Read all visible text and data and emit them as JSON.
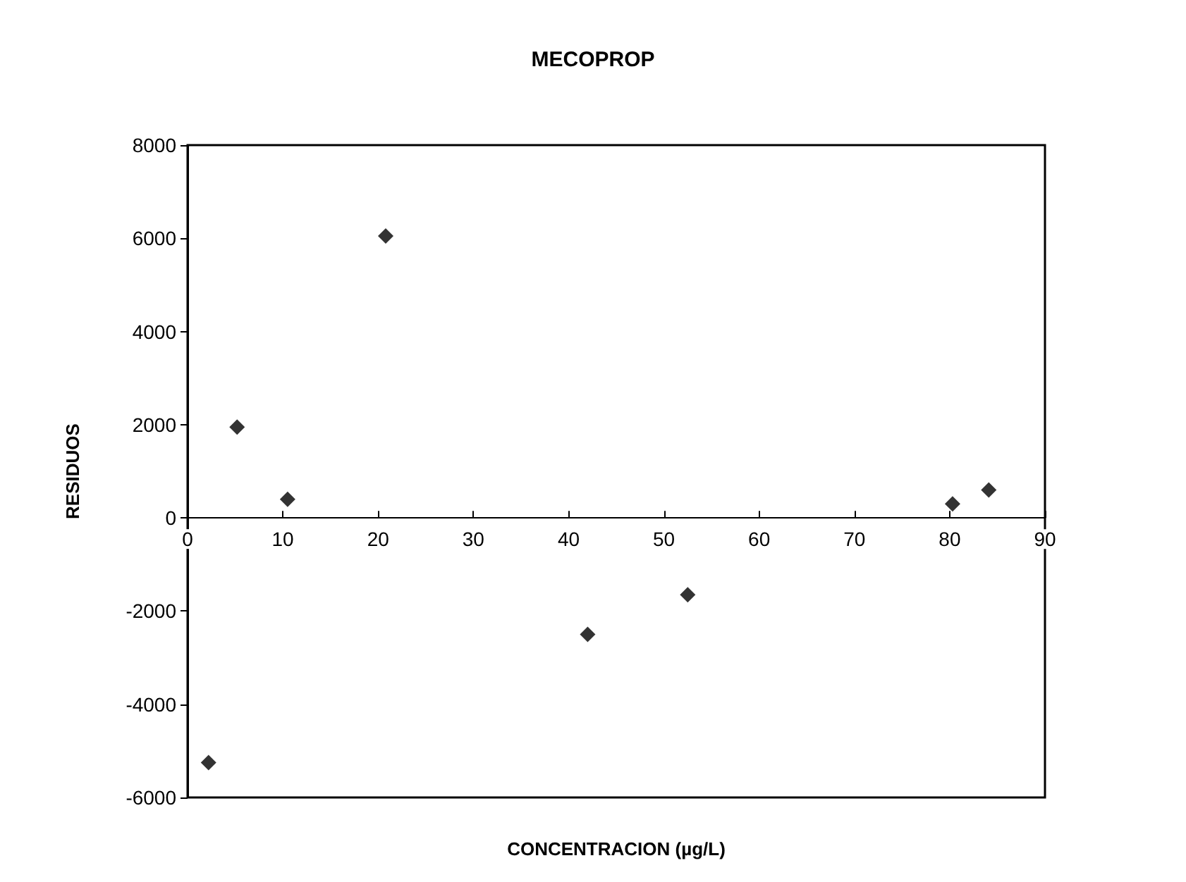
{
  "chart_data": {
    "type": "scatter",
    "title": "MECOPROP",
    "xlabel": "CONCENTRACION (µg/L)",
    "ylabel": "RESIDUOS",
    "x": [
      2.2,
      5.2,
      10.5,
      20.8,
      42.0,
      52.5,
      80.3,
      84.1
    ],
    "values": [
      -5250,
      1950,
      400,
      6050,
      -2500,
      -1650,
      300,
      600
    ],
    "color": "#000000",
    "marker": "diamond",
    "grid": false,
    "xlim": [
      0,
      90
    ],
    "xticks": [
      0,
      10,
      20,
      30,
      40,
      50,
      60,
      70,
      80,
      90
    ],
    "ylim": [
      -6000,
      8000
    ],
    "yticks": [
      -6000,
      -4000,
      -2000,
      0,
      2000,
      4000,
      6000,
      8000
    ]
  }
}
